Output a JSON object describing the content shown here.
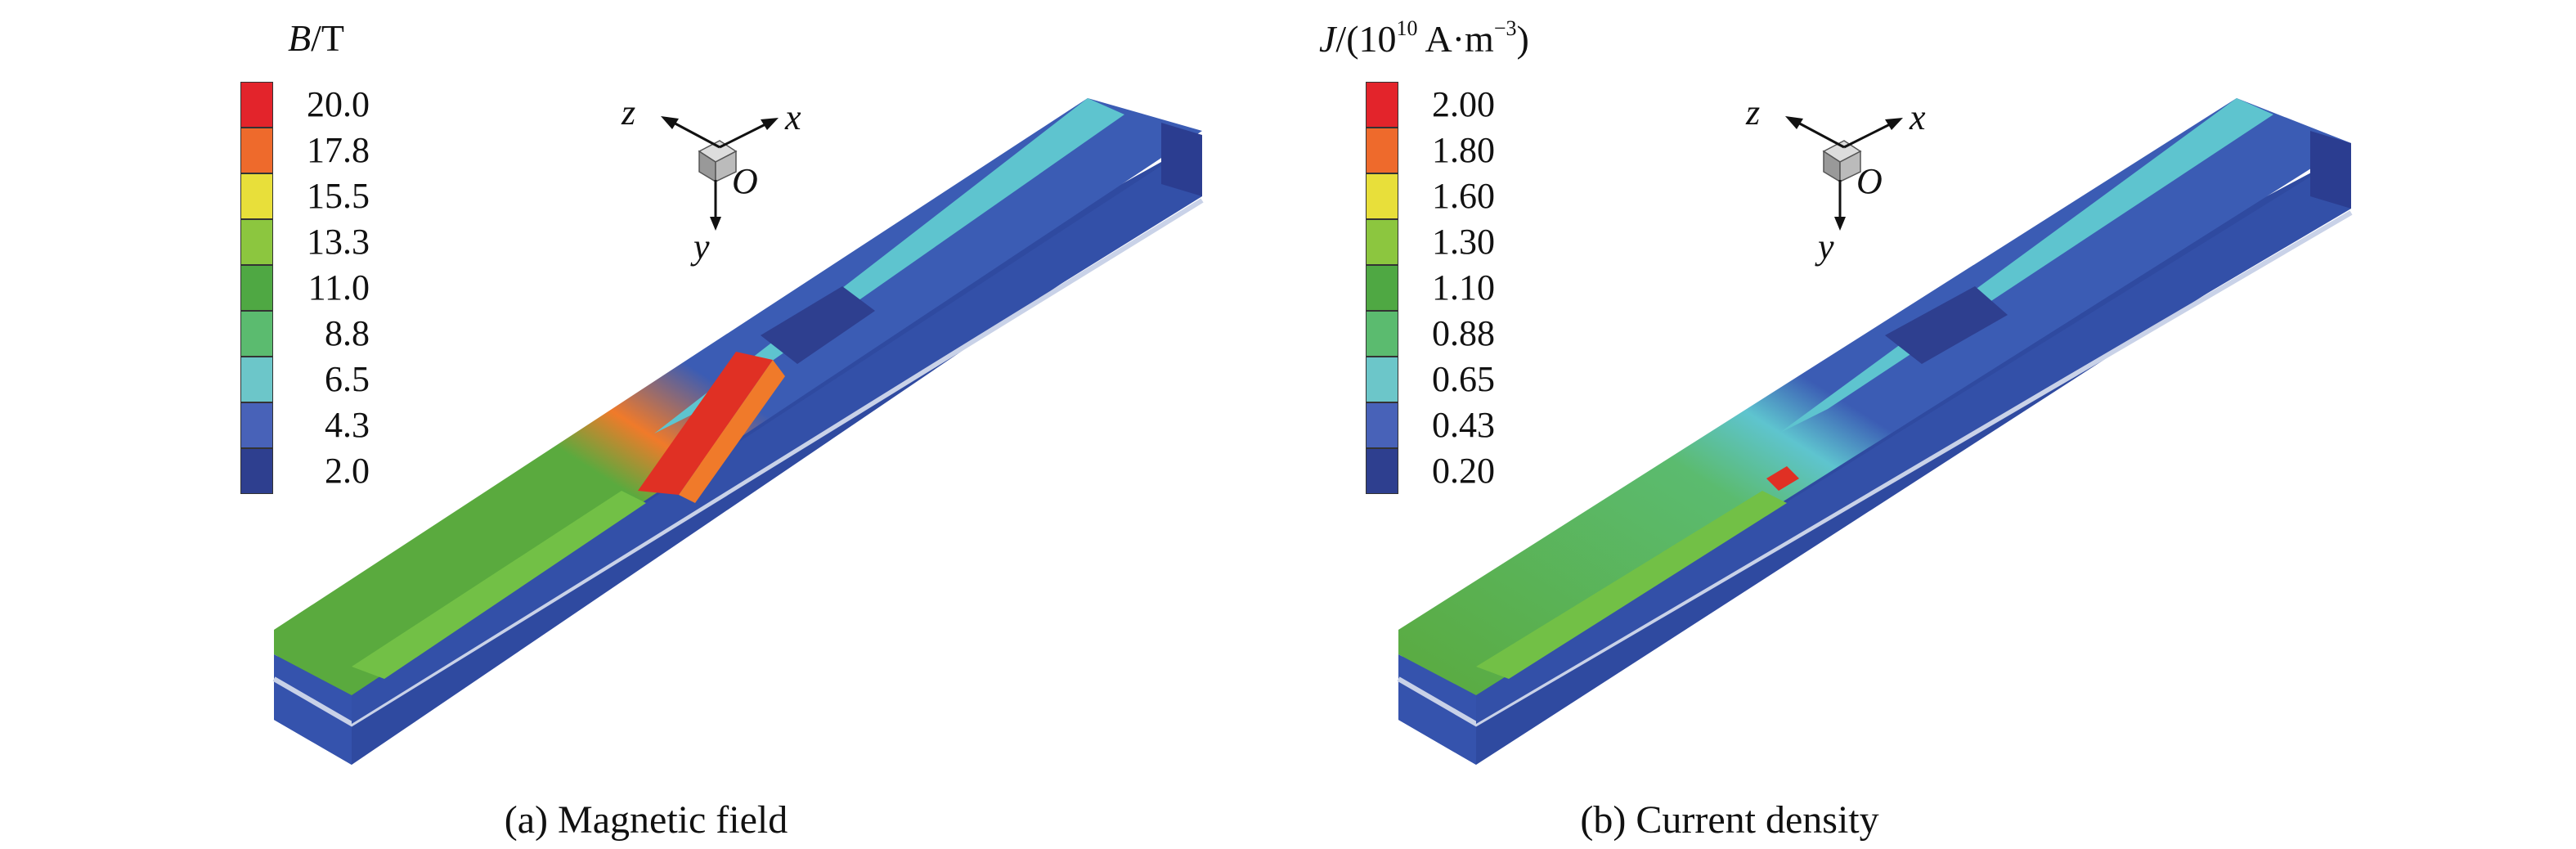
{
  "panels": [
    {
      "id": "a",
      "legend_symbol": "B",
      "legend_unit": "/T",
      "ticks": [
        "20.0",
        "17.8",
        "15.5",
        "13.3",
        "11.0",
        "8.8",
        "6.5",
        "4.3",
        "2.0"
      ],
      "caption": "(a) Magnetic field"
    },
    {
      "id": "b",
      "legend_symbol": "J",
      "legend_unit_pre": "/(10",
      "legend_unit_exp": "10",
      "legend_unit_post": " A·m",
      "legend_unit_exp2": "−3",
      "legend_unit_close": ")",
      "ticks": [
        "2.00",
        "1.80",
        "1.60",
        "1.30",
        "1.10",
        "0.88",
        "0.65",
        "0.43",
        "0.20"
      ],
      "caption": "(b) Current density"
    }
  ],
  "axes": {
    "x": "x",
    "y": "y",
    "z": "z",
    "origin": "O"
  },
  "colors": {
    "scale": [
      "#e3242b",
      "#ee6a2c",
      "#e8df3a",
      "#8cc63f",
      "#4fa843",
      "#5bbb6f",
      "#6cc6c9",
      "#4862b8",
      "#2e3f8f"
    ],
    "bar_top_green": "#5aaa3e",
    "bar_side_blue": "#3048a0",
    "bar_blue_mid": "#3b5cb4",
    "cyan": "#5ec4cf",
    "hot_red": "#e03024",
    "hot_orange": "#f07a2a"
  }
}
